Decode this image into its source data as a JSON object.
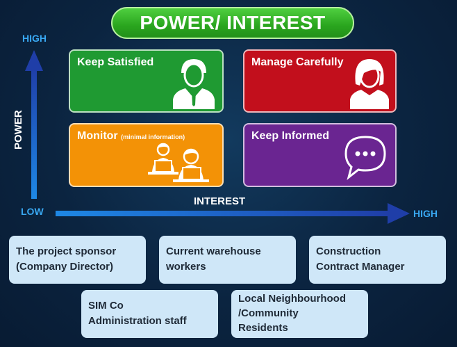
{
  "title": "POWER/ INTEREST",
  "axes": {
    "y_high": "HIGH",
    "y_label": "POWER",
    "low": "LOW",
    "x_label": "INTEREST",
    "x_high": "HIGH"
  },
  "quadrants": {
    "keep_satisfied": "Keep Satisfied",
    "manage_carefully": "Manage Carefully",
    "monitor": "Monitor",
    "monitor_note": "(minimal information)",
    "keep_informed": "Keep Informed"
  },
  "icons": [
    "man-icon",
    "woman-icon",
    "people-at-laptops-icon",
    "speech-bubble-icon"
  ],
  "colors": {
    "title_green": "#2aa51e",
    "keep_satisfied": "#1f9a32",
    "manage_carefully": "#c20f1c",
    "monitor": "#f39206",
    "keep_informed": "#6a2591",
    "axis": "#1f3ea8",
    "stakeholder_box": "#cfe7f8"
  },
  "stakeholders": [
    [
      "The project sponsor",
      "(Company Director)"
    ],
    [
      "Current warehouse",
      "workers"
    ],
    [
      "Construction",
      "Contract Manager"
    ],
    [
      "SIM Co",
      "Administration staff"
    ],
    [
      "Local Neighbourhood",
      "/Community",
      "Residents"
    ]
  ]
}
